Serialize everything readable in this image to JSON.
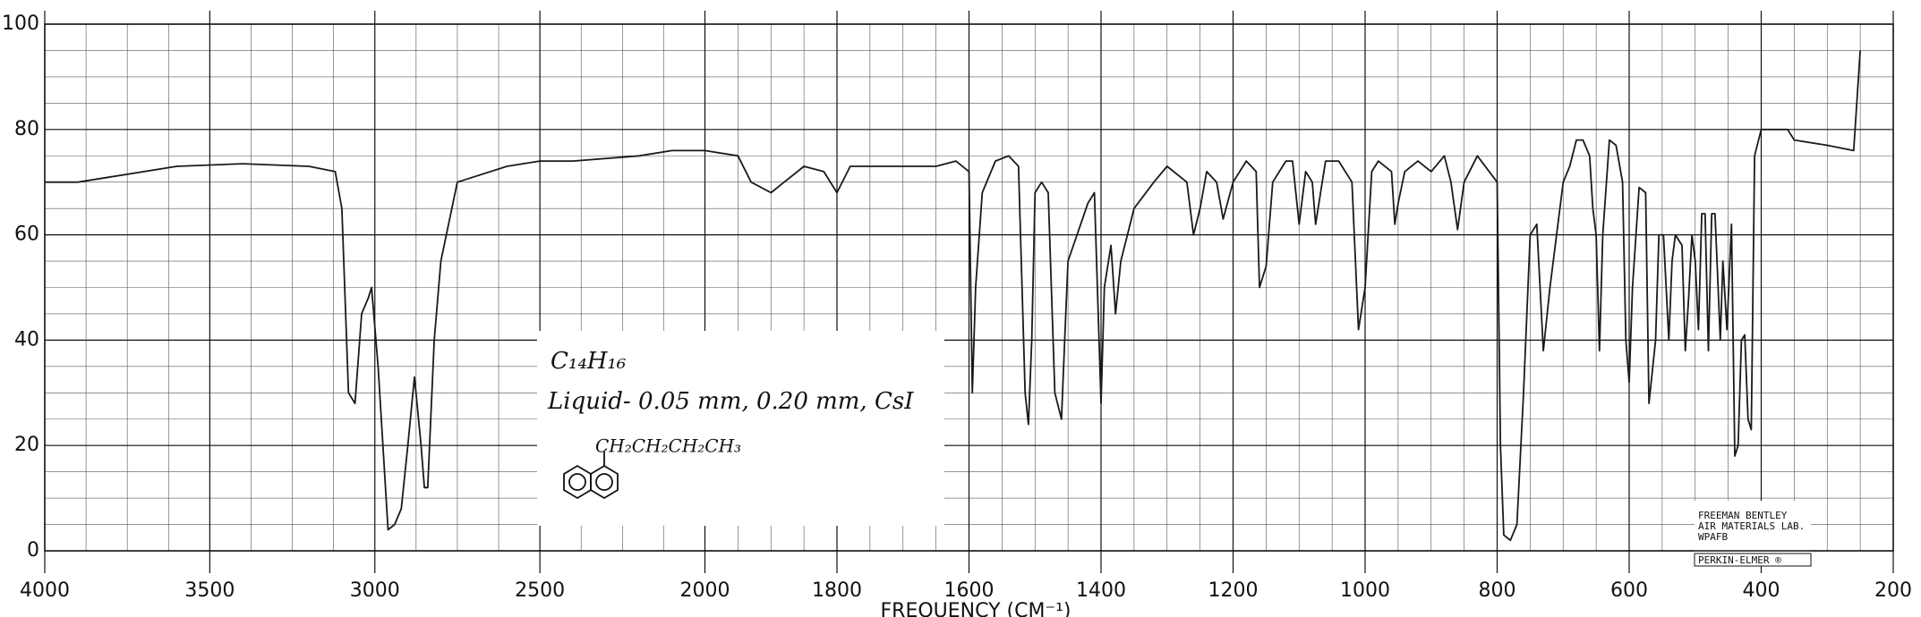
{
  "chart_data": {
    "type": "line",
    "xlabel": "FREQUENCY (CM⁻¹)",
    "x": [
      4000,
      3900,
      3800,
      3600,
      3400,
      3200,
      3120,
      3100,
      3080,
      3060,
      3040,
      3020,
      3010,
      2990,
      2960,
      2940,
      2920,
      2900,
      2880,
      2860,
      2850,
      2840,
      2820,
      2800,
      2750,
      2700,
      2600,
      2500,
      2400,
      2200,
      2100,
      2000,
      1950,
      1930,
      1900,
      1880,
      1860,
      1850,
      1820,
      1800,
      1780,
      1700,
      1650,
      1620,
      1600,
      1595,
      1590,
      1580,
      1560,
      1540,
      1525,
      1515,
      1510,
      1505,
      1500,
      1490,
      1480,
      1470,
      1460,
      1455,
      1450,
      1420,
      1410,
      1400,
      1395,
      1385,
      1378,
      1370,
      1350,
      1320,
      1300,
      1270,
      1260,
      1250,
      1240,
      1225,
      1215,
      1200,
      1180,
      1165,
      1160,
      1150,
      1140,
      1120,
      1110,
      1100,
      1090,
      1080,
      1075,
      1060,
      1040,
      1020,
      1010,
      1000,
      990,
      980,
      960,
      955,
      950,
      940,
      920,
      900,
      880,
      870,
      860,
      850,
      830,
      800,
      795,
      790,
      780,
      770,
      760,
      750,
      740,
      730,
      720,
      700,
      690,
      680,
      670,
      660,
      655,
      650,
      645,
      640,
      630,
      620,
      610,
      605,
      600,
      595,
      585,
      575,
      570,
      560,
      555,
      548,
      540,
      535,
      530,
      520,
      515,
      510,
      505,
      500,
      495,
      490,
      485,
      480,
      475,
      470,
      462,
      458,
      452,
      445,
      440,
      435,
      430,
      425,
      420,
      415,
      410,
      400,
      380,
      360,
      350,
      300,
      260,
      250
    ],
    "values": [
      70,
      70,
      71,
      73,
      73.5,
      73,
      72,
      65,
      30,
      28,
      45,
      48,
      50,
      35,
      4,
      5,
      8,
      20,
      33,
      20,
      12,
      12,
      40,
      55,
      70,
      71,
      73,
      74,
      74,
      75,
      76,
      76,
      75,
      70,
      68,
      70,
      72,
      73,
      72,
      68,
      73,
      73,
      73,
      74,
      72,
      30,
      50,
      68,
      74,
      75,
      73,
      30,
      24,
      40,
      68,
      70,
      68,
      30,
      25,
      40,
      55,
      66,
      68,
      28,
      50,
      58,
      45,
      55,
      65,
      70,
      73,
      70,
      60,
      65,
      72,
      70,
      63,
      70,
      74,
      72,
      50,
      54,
      70,
      74,
      74,
      62,
      72,
      70,
      62,
      74,
      74,
      70,
      42,
      50,
      72,
      74,
      72,
      62,
      66,
      72,
      74,
      72,
      75,
      70,
      61,
      70,
      75,
      70,
      20,
      3,
      2,
      5,
      30,
      60,
      62,
      38,
      50,
      70,
      73,
      78,
      78,
      75,
      65,
      60,
      38,
      60,
      78,
      77,
      70,
      40,
      32,
      50,
      69,
      68,
      28,
      40,
      60,
      60,
      40,
      55,
      60,
      58,
      38,
      48,
      60,
      55,
      42,
      64,
      64,
      38,
      64,
      64,
      40,
      55,
      42,
      62,
      18,
      20,
      40,
      41,
      25,
      23,
      75,
      80,
      80,
      80,
      78,
      77,
      76,
      95
    ],
    "color": "#1a1a1a",
    "xlim": [
      4000,
      200
    ],
    "xticks": [
      4000,
      3500,
      3000,
      2500,
      2000,
      1800,
      1600,
      1400,
      1200,
      1000,
      800,
      600,
      400,
      200
    ],
    "xscale": {
      "break": 2000,
      "ratio": 2
    },
    "ylim": [
      0,
      100
    ],
    "yticks": [
      0,
      20,
      40,
      60,
      80,
      100
    ],
    "grid": true,
    "annotations": [
      "C₁₄H₁₆",
      "Liquid- 0.05 mm, 0.20 mm, CsI",
      "CH₂CH₂CH₂CH₃"
    ],
    "lab_text": [
      "FREEMAN BENTLEY",
      "AIR MATERIALS LAB.",
      "WPAFB"
    ],
    "brand": "PERKIN-ELMER ®"
  }
}
